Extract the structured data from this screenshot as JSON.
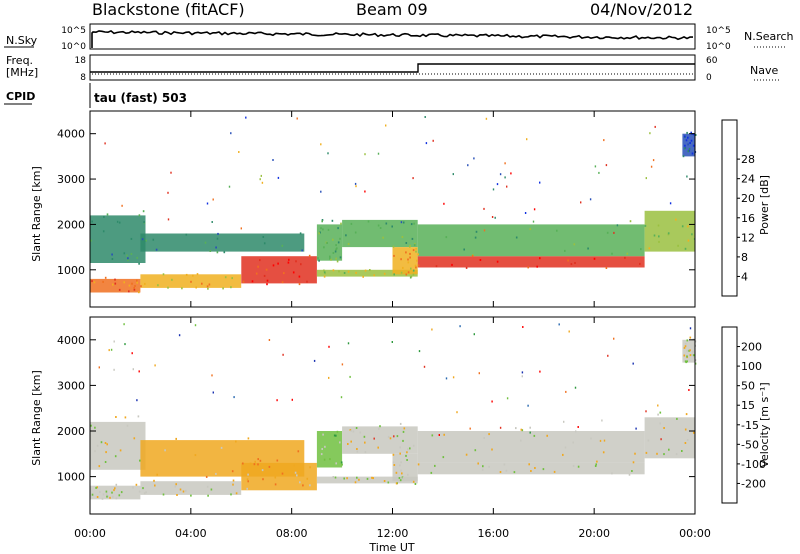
{
  "header": {
    "station": "Blackstone (fitACF)",
    "beam": "Beam 09",
    "date": "04/Nov/2012"
  },
  "top_panels": {
    "nsky_label": "N.Sky",
    "nsky_ticks": [
      "10^5",
      "10^0"
    ],
    "nsearch_label": "N.Search",
    "nsearch_ticks": [
      "10^5",
      "10^0"
    ],
    "freq_label": "Freq.",
    "freq_unit": "[MHz]",
    "freq_ticks": [
      "18",
      "8"
    ],
    "nave_label": "Nave",
    "nave_ticks": [
      "60",
      "0"
    ],
    "cpid_label": "CPID",
    "cpid_value": "tau (fast) 503"
  },
  "chart_data": [
    {
      "type": "heatmap",
      "name": "power",
      "ylabel": "Slant Range [km]",
      "ylim": [
        180,
        4500
      ],
      "yticks": [
        "1000",
        "2000",
        "3000",
        "4000"
      ],
      "x_ticks": [
        "00:00",
        "04:00",
        "08:00",
        "12:00",
        "16:00",
        "20:00",
        "00:00"
      ],
      "colorbar": {
        "label": "Power [dB]",
        "ticks": [
          "4",
          "8",
          "12",
          "16",
          "20",
          "24",
          "28"
        ],
        "colors": [
          "#1030e0",
          "#2850b8",
          "#2e8a6a",
          "#58b058",
          "#9ac040",
          "#f0b020",
          "#f07020",
          "#e03020",
          "#ff0000"
        ]
      },
      "echo_bands": [
        {
          "t0": 0.0,
          "t1": 2.0,
          "r0": 500,
          "r1": 800,
          "level": 6
        },
        {
          "t0": 0.0,
          "t1": 2.2,
          "r0": 1150,
          "r1": 2200,
          "level": 2
        },
        {
          "t0": 2.0,
          "t1": 6.0,
          "r0": 600,
          "r1": 900,
          "level": 5
        },
        {
          "t0": 2.0,
          "t1": 8.5,
          "r0": 1400,
          "r1": 1800,
          "level": 2
        },
        {
          "t0": 6.0,
          "t1": 9.0,
          "r0": 700,
          "r1": 1300,
          "level": 7
        },
        {
          "t0": 9.0,
          "t1": 10.0,
          "r0": 1200,
          "r1": 2000,
          "level": 3
        },
        {
          "t0": 9.0,
          "t1": 13.0,
          "r0": 850,
          "r1": 1000,
          "level": 4
        },
        {
          "t0": 10.0,
          "t1": 13.0,
          "r0": 1500,
          "r1": 2100,
          "level": 3
        },
        {
          "t0": 12.0,
          "t1": 13.0,
          "r0": 900,
          "r1": 1500,
          "level": 5
        },
        {
          "t0": 13.0,
          "t1": 22.0,
          "r0": 1050,
          "r1": 1300,
          "level": 7
        },
        {
          "t0": 13.0,
          "t1": 22.0,
          "r0": 1300,
          "r1": 2000,
          "level": 3
        },
        {
          "t0": 22.0,
          "t1": 24.0,
          "r0": 1400,
          "r1": 2300,
          "level": 4
        },
        {
          "t0": 23.5,
          "t1": 24.0,
          "r0": 3500,
          "r1": 4000,
          "level": 1
        }
      ]
    },
    {
      "type": "heatmap",
      "name": "velocity",
      "ylabel": "Slant Range [km]",
      "ylim": [
        180,
        4500
      ],
      "yticks": [
        "1000",
        "2000",
        "3000",
        "4000"
      ],
      "x_ticks": [
        "00:00",
        "04:00",
        "08:00",
        "12:00",
        "16:00",
        "20:00",
        "00:00"
      ],
      "xlabel": "Time UT",
      "colorbar": {
        "label": "Velocity [m s⁻¹]",
        "ticks": [
          "200",
          "100",
          "50",
          "15",
          "-15",
          "-50",
          "-100",
          "-200"
        ],
        "colors": [
          "#1830b0",
          "#2a6ab0",
          "#2e9a3e",
          "#70c040",
          "#c8c8c0",
          "#f0a820",
          "#f07020",
          "#e03020",
          "#ff0000"
        ]
      },
      "echo_bands": [
        {
          "t0": 0.0,
          "t1": 2.0,
          "r0": 500,
          "r1": 800,
          "level": 4
        },
        {
          "t0": 0.0,
          "t1": 2.2,
          "r0": 1150,
          "r1": 2200,
          "level": 4
        },
        {
          "t0": 2.0,
          "t1": 6.0,
          "r0": 600,
          "r1": 900,
          "level": 4
        },
        {
          "t0": 2.0,
          "t1": 8.5,
          "r0": 1000,
          "r1": 1800,
          "level": 5
        },
        {
          "t0": 6.0,
          "t1": 9.0,
          "r0": 700,
          "r1": 1300,
          "level": 5
        },
        {
          "t0": 9.0,
          "t1": 10.0,
          "r0": 1200,
          "r1": 2000,
          "level": 3
        },
        {
          "t0": 9.0,
          "t1": 13.0,
          "r0": 850,
          "r1": 1000,
          "level": 4
        },
        {
          "t0": 10.0,
          "t1": 13.0,
          "r0": 1500,
          "r1": 2100,
          "level": 4
        },
        {
          "t0": 12.0,
          "t1": 13.0,
          "r0": 900,
          "r1": 1500,
          "level": 4
        },
        {
          "t0": 13.0,
          "t1": 22.0,
          "r0": 1050,
          "r1": 1300,
          "level": 4
        },
        {
          "t0": 13.0,
          "t1": 22.0,
          "r0": 1300,
          "r1": 2000,
          "level": 4
        },
        {
          "t0": 22.0,
          "t1": 24.0,
          "r0": 1400,
          "r1": 2300,
          "level": 4
        },
        {
          "t0": 23.5,
          "t1": 24.0,
          "r0": 3500,
          "r1": 4000,
          "level": 4
        }
      ]
    }
  ]
}
